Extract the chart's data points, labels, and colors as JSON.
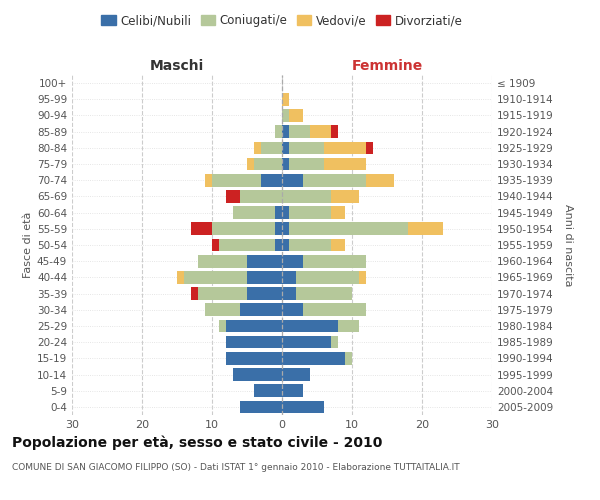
{
  "age_groups": [
    "0-4",
    "5-9",
    "10-14",
    "15-19",
    "20-24",
    "25-29",
    "30-34",
    "35-39",
    "40-44",
    "45-49",
    "50-54",
    "55-59",
    "60-64",
    "65-69",
    "70-74",
    "75-79",
    "80-84",
    "85-89",
    "90-94",
    "95-99",
    "100+"
  ],
  "birth_years": [
    "2005-2009",
    "2000-2004",
    "1995-1999",
    "1990-1994",
    "1985-1989",
    "1980-1984",
    "1975-1979",
    "1970-1974",
    "1965-1969",
    "1960-1964",
    "1955-1959",
    "1950-1954",
    "1945-1949",
    "1940-1944",
    "1935-1939",
    "1930-1934",
    "1925-1929",
    "1920-1924",
    "1915-1919",
    "1910-1914",
    "≤ 1909"
  ],
  "males": {
    "celibi": [
      6,
      4,
      7,
      8,
      8,
      8,
      6,
      5,
      5,
      5,
      1,
      1,
      1,
      0,
      3,
      0,
      0,
      0,
      0,
      0,
      0
    ],
    "coniugati": [
      0,
      0,
      0,
      0,
      0,
      1,
      5,
      7,
      9,
      7,
      8,
      9,
      6,
      6,
      7,
      4,
      3,
      1,
      0,
      0,
      0
    ],
    "vedovi": [
      0,
      0,
      0,
      0,
      0,
      0,
      0,
      0,
      1,
      0,
      0,
      0,
      0,
      0,
      1,
      1,
      1,
      0,
      0,
      0,
      0
    ],
    "divorziati": [
      0,
      0,
      0,
      0,
      0,
      0,
      0,
      1,
      0,
      0,
      1,
      3,
      0,
      2,
      0,
      0,
      0,
      0,
      0,
      0,
      0
    ]
  },
  "females": {
    "nubili": [
      6,
      3,
      4,
      9,
      7,
      8,
      3,
      2,
      2,
      3,
      1,
      1,
      1,
      0,
      3,
      1,
      1,
      1,
      0,
      0,
      0
    ],
    "coniugate": [
      0,
      0,
      0,
      1,
      1,
      3,
      9,
      8,
      9,
      9,
      6,
      17,
      6,
      7,
      9,
      5,
      5,
      3,
      1,
      0,
      0
    ],
    "vedove": [
      0,
      0,
      0,
      0,
      0,
      0,
      0,
      0,
      1,
      0,
      2,
      5,
      2,
      4,
      4,
      6,
      6,
      3,
      2,
      1,
      0
    ],
    "divorziate": [
      0,
      0,
      0,
      0,
      0,
      0,
      0,
      0,
      0,
      0,
      0,
      0,
      0,
      0,
      0,
      0,
      1,
      1,
      0,
      0,
      0
    ]
  },
  "colors": {
    "celibi": "#3a6fa8",
    "coniugati": "#b5c89a",
    "vedovi": "#f0c060",
    "divorziati": "#cc2222"
  },
  "xlim": 30,
  "title": "Popolazione per età, sesso e stato civile - 2010",
  "subtitle": "COMUNE DI SAN GIACOMO FILIPPO (SO) - Dati ISTAT 1° gennaio 2010 - Elaborazione TUTTAITALIA.IT",
  "xlabel_left": "Maschi",
  "xlabel_right": "Femmine",
  "ylabel_left": "Fasce di età",
  "ylabel_right": "Anni di nascita",
  "legend_labels": [
    "Celibi/Nubili",
    "Coniugati/e",
    "Vedovi/e",
    "Divorziati/e"
  ]
}
